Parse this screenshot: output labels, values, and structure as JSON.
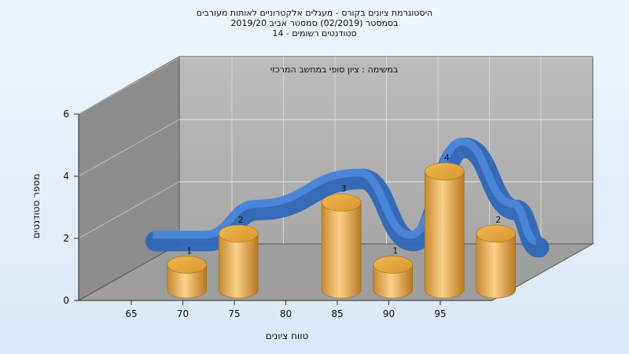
{
  "chart_data": {
    "type": "bar",
    "title_lines": [
      "היסטוגרמת ציונים בקורס - מעגלים אלקטרוניים לאותות מעורבים",
      "בסמסטר  (02/2019)  סמסטר אביב 2019/20",
      "סטודנטים רשומים - 14"
    ],
    "subtitle": "במשימה : ציון סופי במחשב המרכזי",
    "xlabel": "טווח ציונים",
    "ylabel": "מספר סטודנטים",
    "ylim": [
      0,
      6
    ],
    "yticks": [
      "0",
      "2",
      "4",
      "6"
    ],
    "xticks": [
      "65",
      "70",
      "75",
      "80",
      "85",
      "90",
      "95"
    ],
    "bars": [
      {
        "x": 67.5,
        "value": 1,
        "label": "1"
      },
      {
        "x": 72.5,
        "value": 2,
        "label": "2"
      },
      {
        "x": 82.5,
        "value": 3,
        "label": "3"
      },
      {
        "x": 87.5,
        "value": 1,
        "label": "1"
      },
      {
        "x": 92.5,
        "value": 4,
        "label": "4"
      },
      {
        "x": 97.5,
        "value": 2,
        "label": "2"
      }
    ],
    "grid": true,
    "colors": {
      "bar": "#e0a040",
      "curve": "#3a72c8",
      "wall": "#b4b4b4",
      "side": "#8a8a8a",
      "floor": "#9c9c9c"
    }
  }
}
